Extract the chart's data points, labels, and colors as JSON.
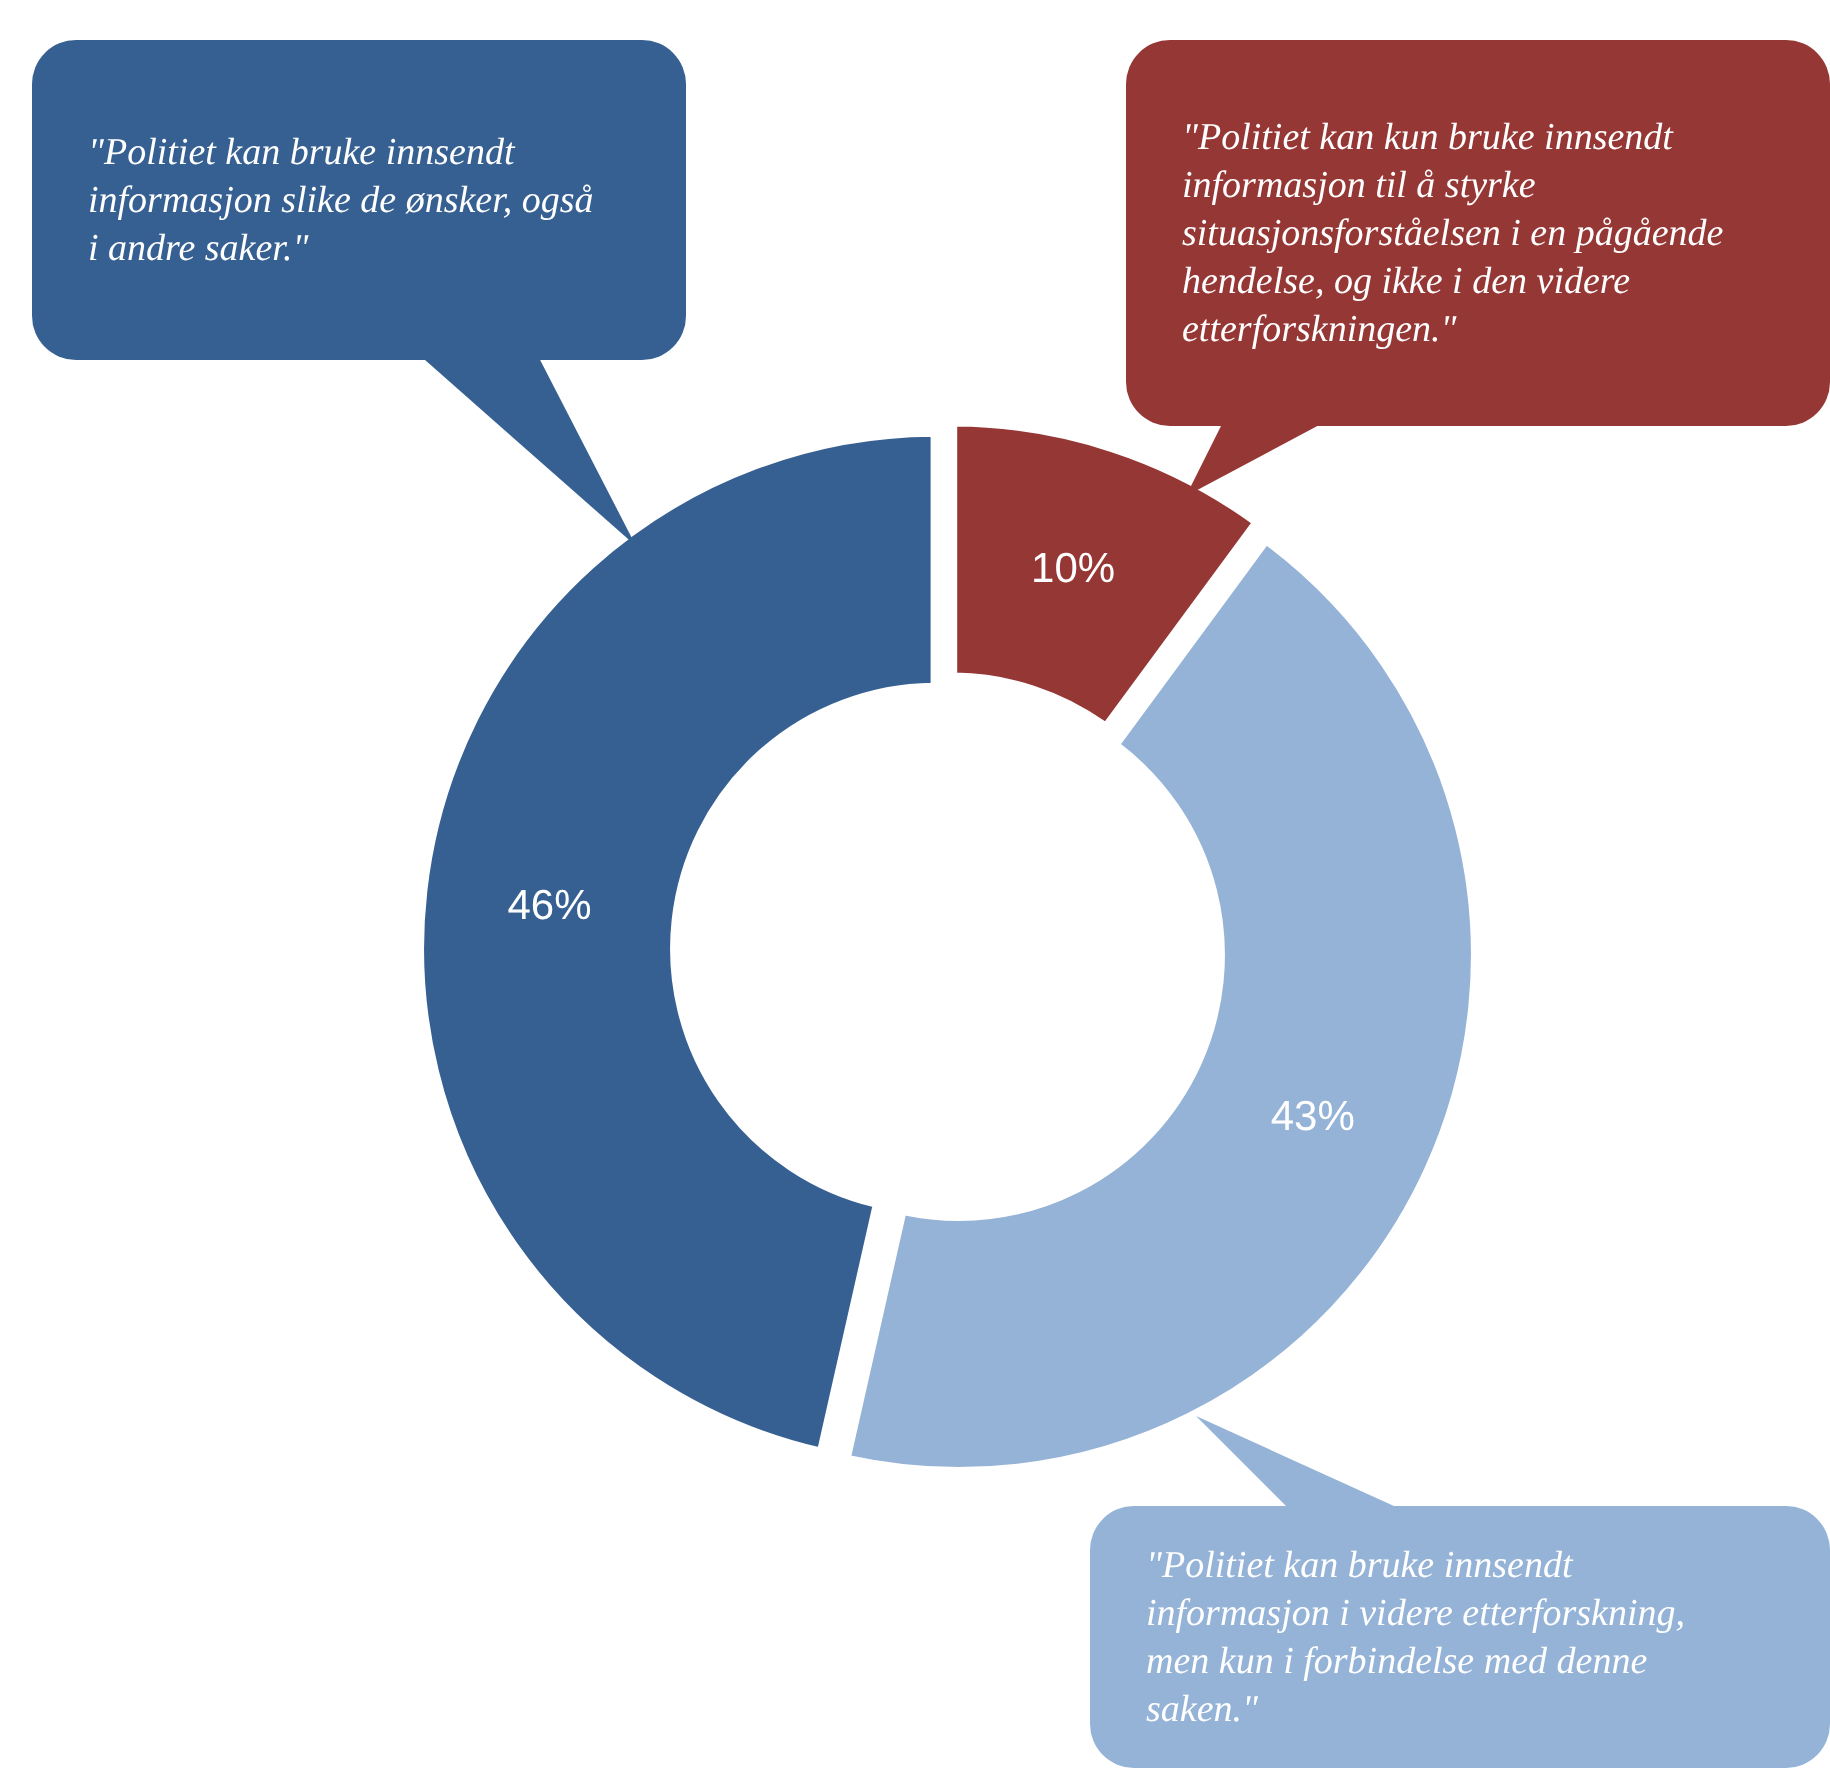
{
  "chart_data": {
    "type": "donut",
    "categories": [
      "\"Politiet kan kun bruke innsendt informasjon til å styrke situasjonsforståelsen i en pågående hendelse, og ikke i den videre etterforskningen.\"",
      "\"Politiet kan bruke innsendt informasjon i videre etterforskning, men kun i forbindelse med denne saken.\"",
      "\"Politiet kan bruke innsendt informasjon slike de ønsker, også i andre saker.\""
    ],
    "values": [
      10,
      43,
      46
    ],
    "value_labels": [
      "10%",
      "43%",
      "46%"
    ],
    "colors": [
      "#953735",
      "#95b3d7",
      "#376092"
    ]
  }
}
